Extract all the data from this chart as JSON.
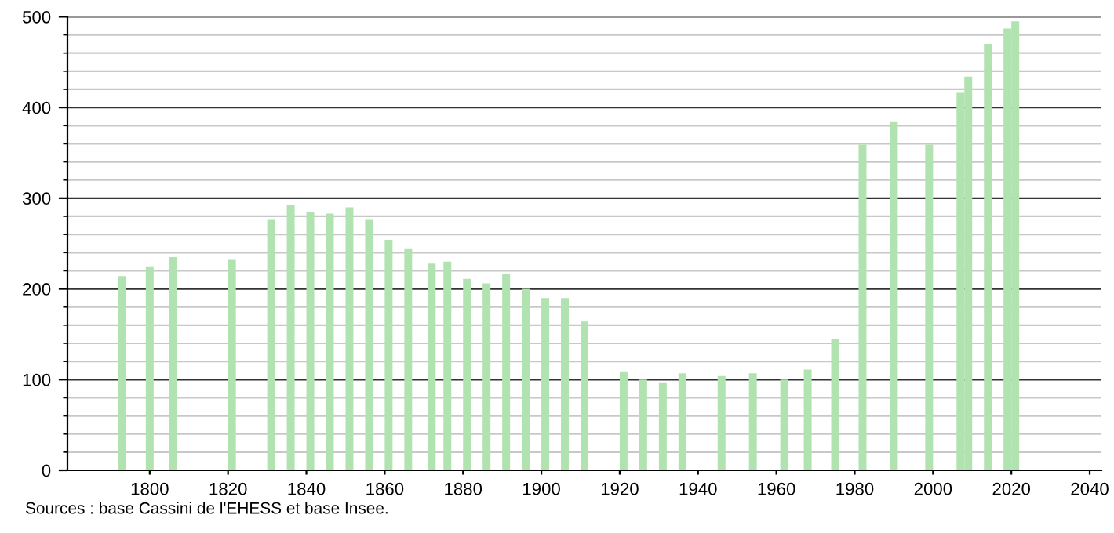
{
  "chart_data": {
    "type": "bar",
    "x": [
      1793,
      1800,
      1806,
      1821,
      1831,
      1836,
      1841,
      1846,
      1851,
      1856,
      1861,
      1866,
      1872,
      1876,
      1881,
      1886,
      1891,
      1896,
      1901,
      1906,
      1911,
      1921,
      1926,
      1931,
      1936,
      1946,
      1954,
      1962,
      1968,
      1975,
      1982,
      1990,
      1999,
      2007,
      2009,
      2014,
      2019,
      2021
    ],
    "values": [
      214,
      225,
      235,
      232,
      276,
      292,
      285,
      283,
      290,
      276,
      254,
      244,
      228,
      230,
      211,
      206,
      216,
      200,
      190,
      190,
      164,
      109,
      100,
      97,
      107,
      104,
      107,
      100,
      111,
      145,
      359,
      384,
      359,
      416,
      434,
      470,
      487,
      495
    ],
    "color": "#b0e3b0",
    "xlim": [
      1779,
      2043
    ],
    "xticks": [
      1800,
      1820,
      1840,
      1860,
      1880,
      1900,
      1920,
      1940,
      1960,
      1980,
      2000,
      2020,
      2040
    ],
    "ylim": [
      0,
      500
    ],
    "yticks": [
      0,
      100,
      200,
      300,
      400,
      500
    ],
    "grid": "y",
    "annotations": [
      "Sources : base Cassini de l'EHESS et base Insee."
    ]
  }
}
